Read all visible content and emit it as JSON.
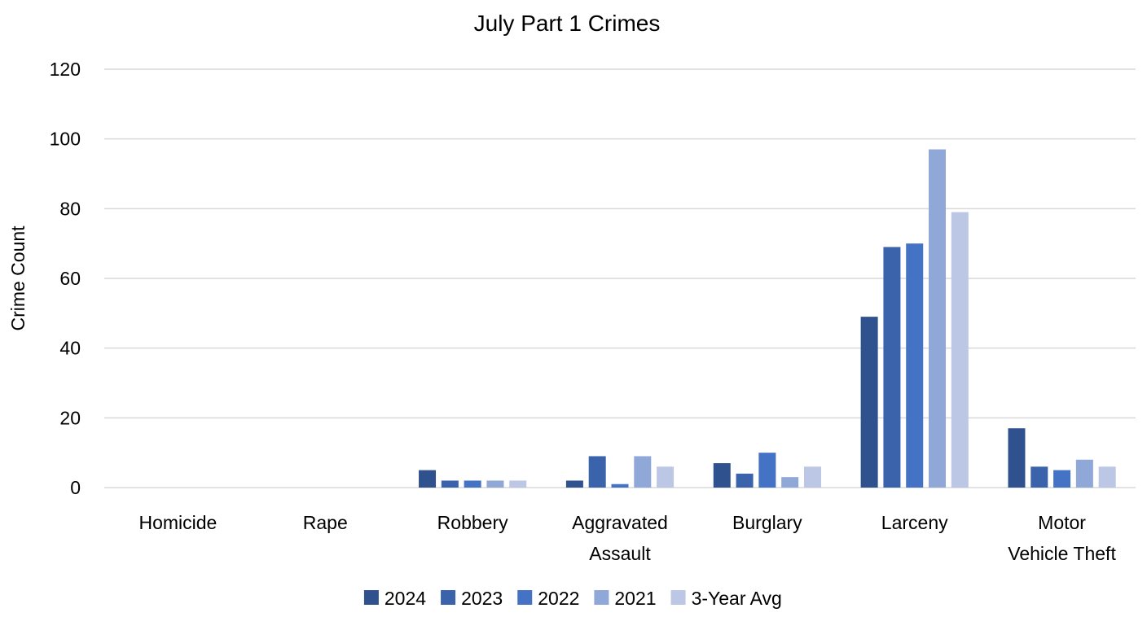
{
  "chart_data": {
    "type": "bar",
    "title": "July Part 1 Crimes",
    "xlabel": "",
    "ylabel": "Crime Count",
    "ylim": [
      0,
      120
    ],
    "yticks": [
      0,
      20,
      40,
      60,
      80,
      100,
      120
    ],
    "grid": true,
    "legend_position": "bottom",
    "categories": [
      [
        "Homicide"
      ],
      [
        "Rape"
      ],
      [
        "Robbery"
      ],
      [
        "Aggravated",
        "Assault"
      ],
      [
        "Burglary"
      ],
      [
        "Larceny"
      ],
      [
        "Motor",
        "Vehicle Theft"
      ]
    ],
    "series": [
      {
        "name": "2024",
        "color": "#2f528f",
        "values": [
          0,
          0,
          5,
          2,
          7,
          49,
          17
        ]
      },
      {
        "name": "2023",
        "color": "#3a63ac",
        "values": [
          0,
          0,
          2,
          9,
          4,
          69,
          6
        ]
      },
      {
        "name": "2022",
        "color": "#4472c4",
        "values": [
          0,
          0,
          2,
          1,
          10,
          70,
          5
        ]
      },
      {
        "name": "2021",
        "color": "#8fa8d8",
        "values": [
          0,
          0,
          2,
          9,
          3,
          97,
          8
        ]
      },
      {
        "name": "3-Year Avg",
        "color": "#bcc6e5",
        "values": [
          0,
          0,
          2,
          6,
          6,
          79,
          6
        ]
      }
    ]
  }
}
